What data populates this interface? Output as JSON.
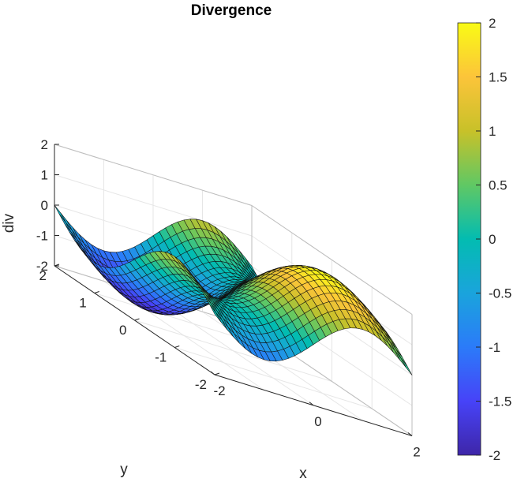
{
  "chart_data": {
    "type": "surface",
    "title": "Divergence",
    "xlabel": "x",
    "ylabel": "y",
    "zlabel": "div",
    "function": "div = sin(x*pi/2) - sin(y*pi/2)",
    "x_range": [
      -2,
      2
    ],
    "y_range": [
      -2,
      2
    ],
    "zlim": [
      -2,
      2
    ],
    "clim": [
      -2,
      2
    ],
    "grid_samples": 33,
    "colormap": "parula",
    "grid": true,
    "x_ticks": [
      "-2",
      "0",
      "2"
    ],
    "y_ticks": [
      "-2",
      "-1",
      "0",
      "1",
      "2"
    ],
    "z_ticks": [
      "-2",
      "-1",
      "0",
      "1",
      "2"
    ],
    "colorbar_ticks": [
      "-2",
      "-1.5",
      "-1",
      "-0.5",
      "0",
      "0.5",
      "1",
      "1.5",
      "2"
    ],
    "colorbar_placement": "right",
    "view": "3d-perspective"
  }
}
